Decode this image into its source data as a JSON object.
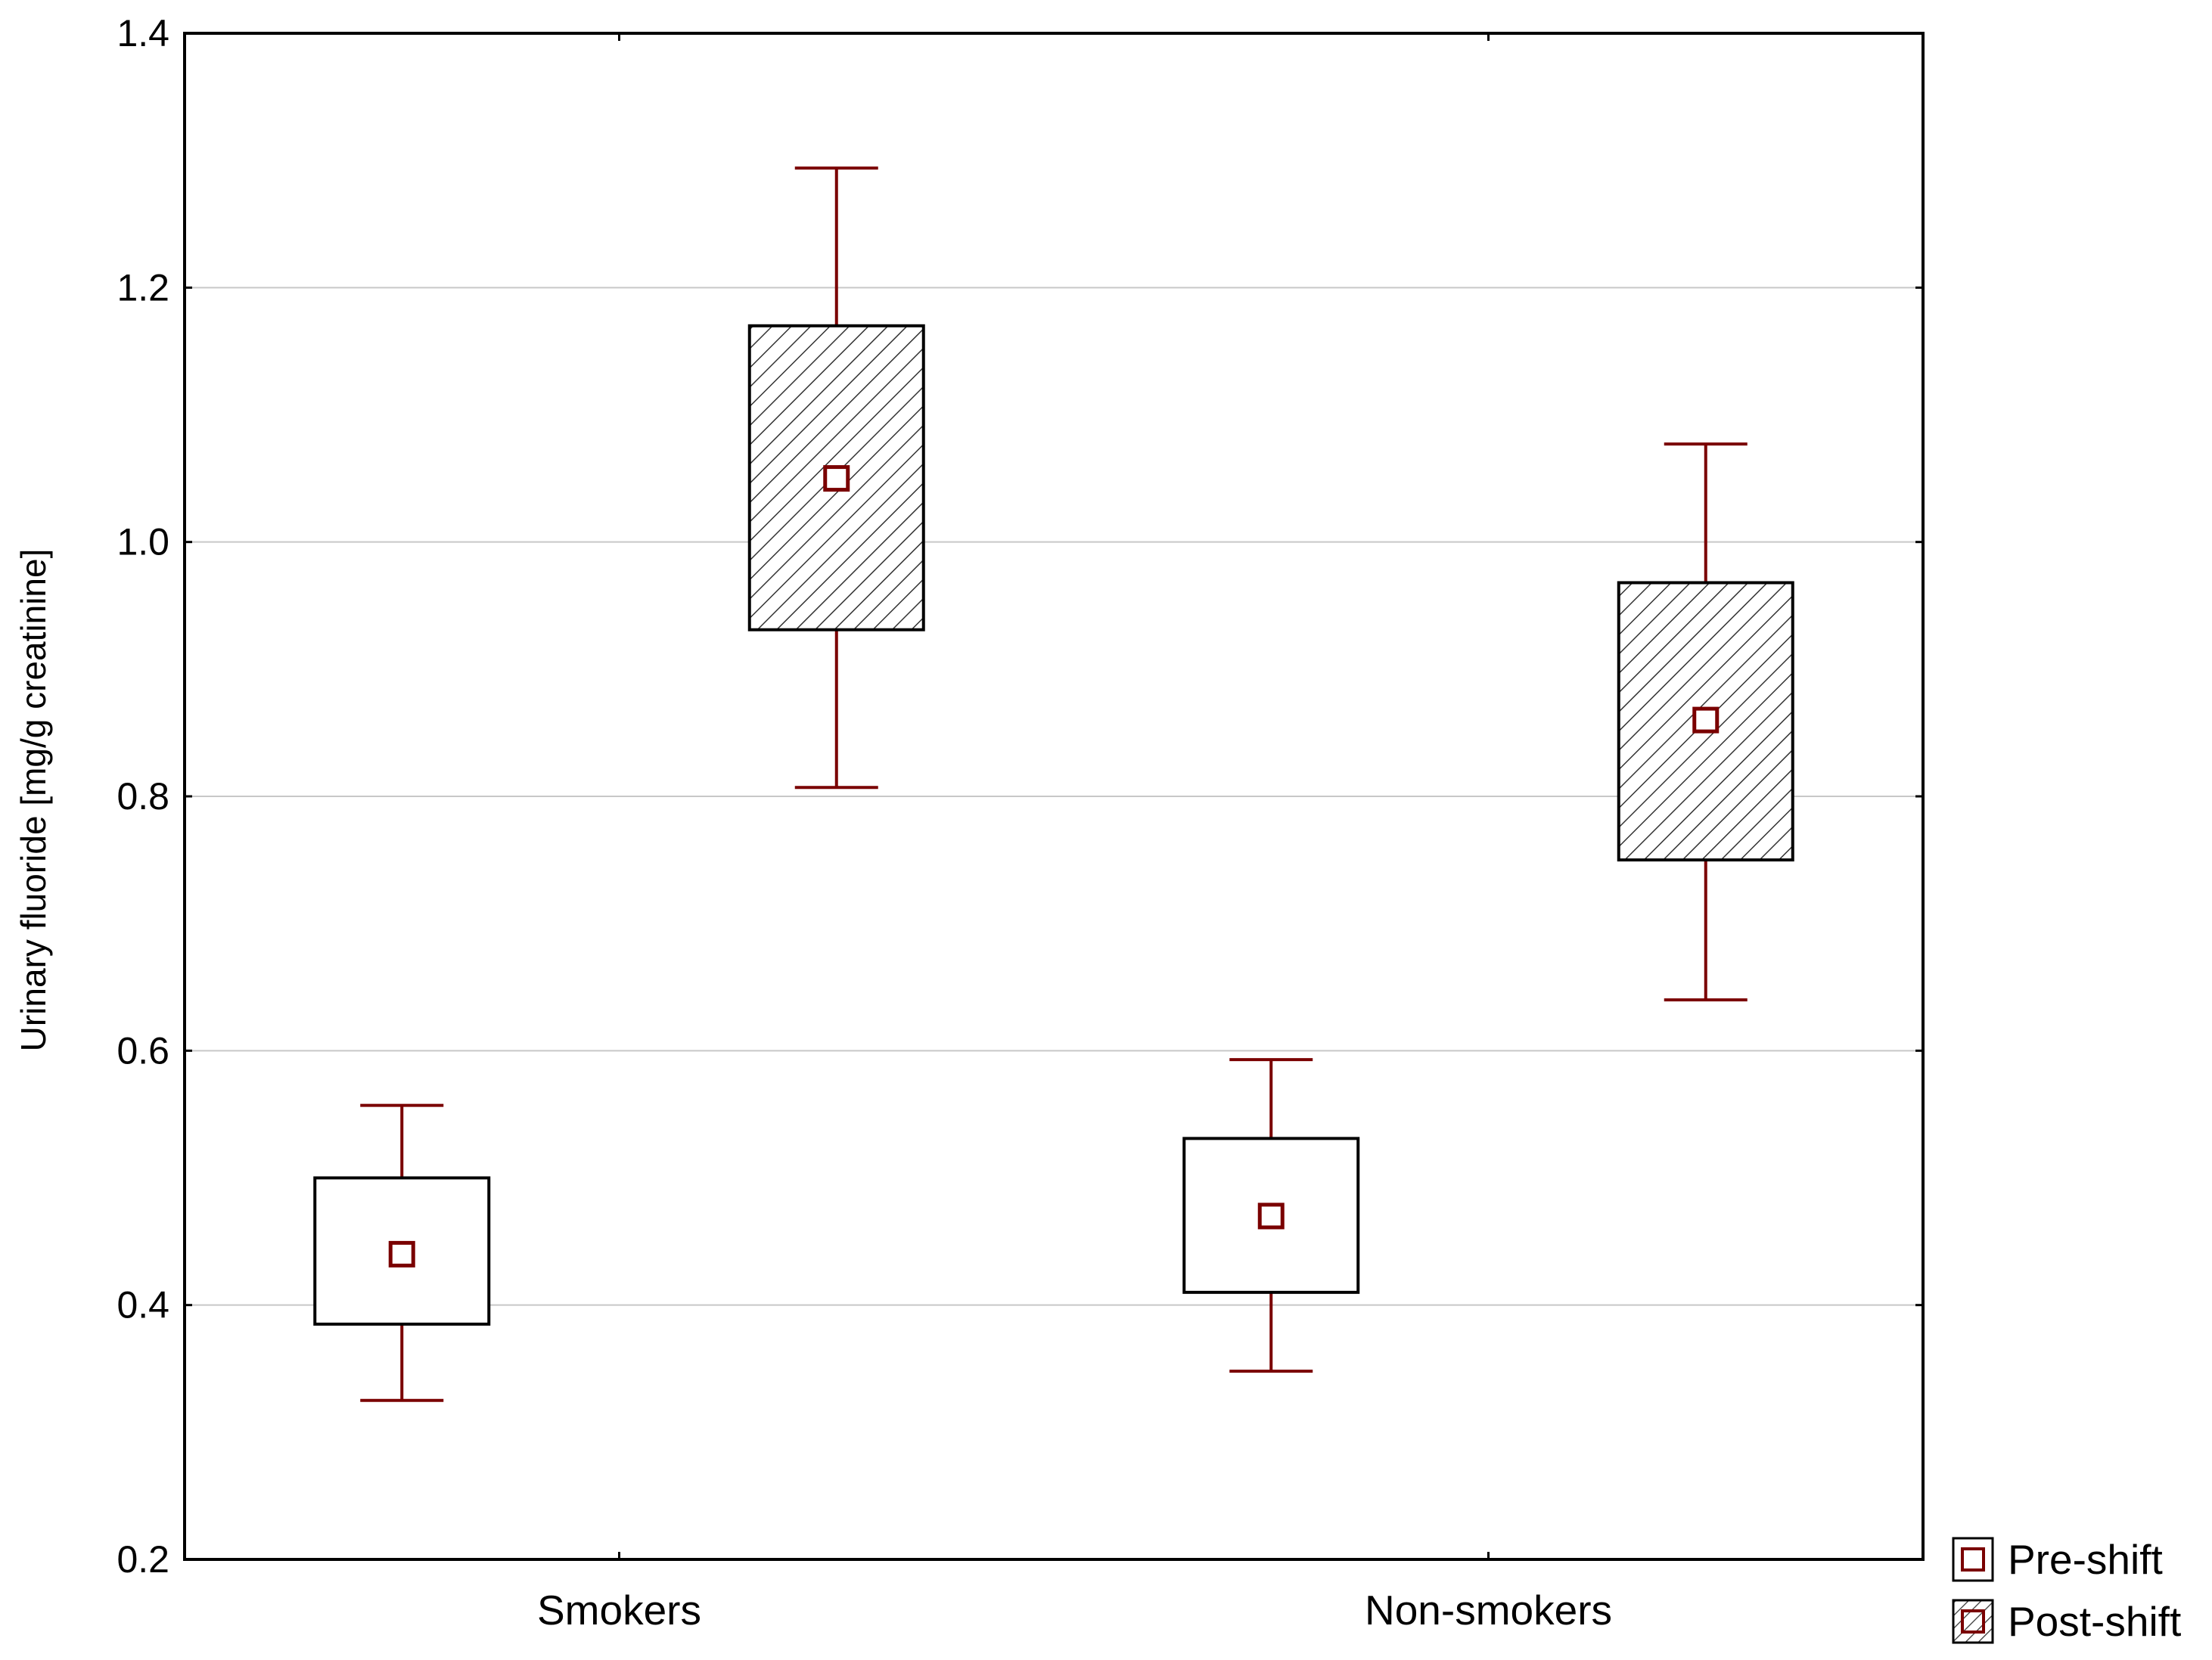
{
  "chart_data": {
    "type": "box",
    "ylabel": "Urinary fluoride [mg/g creatinine]",
    "xlabel": "",
    "ylim": [
      0.2,
      1.4
    ],
    "yticks": [
      0.2,
      0.4,
      0.6,
      0.8,
      1.0,
      1.2,
      1.4
    ],
    "ytick_labels": [
      "0.2",
      "0.4",
      "0.6",
      "0.8",
      "1.0",
      "1.2",
      "1.4"
    ],
    "categories": [
      "Smokers",
      "Non-smokers"
    ],
    "grid": "horizontal",
    "legend_position": "bottom-right",
    "series": [
      {
        "name": "Pre-shift",
        "fill": "none",
        "boxes": [
          {
            "center": 0.44,
            "box_low": 0.385,
            "box_high": 0.5,
            "whisker_low": 0.325,
            "whisker_high": 0.557
          },
          {
            "center": 0.47,
            "box_low": 0.41,
            "box_high": 0.531,
            "whisker_low": 0.348,
            "whisker_high": 0.593
          }
        ]
      },
      {
        "name": "Post-shift",
        "fill": "hatched",
        "boxes": [
          {
            "center": 1.05,
            "box_low": 0.931,
            "box_high": 1.17,
            "whisker_low": 0.807,
            "whisker_high": 1.294
          },
          {
            "center": 0.86,
            "box_low": 0.75,
            "box_high": 0.968,
            "whisker_low": 0.64,
            "whisker_high": 1.077
          }
        ]
      }
    ],
    "colors": {
      "whisker": "#7a0000",
      "marker": "#7a0000",
      "box": "#000000",
      "grid": "#c8c8c8"
    }
  }
}
